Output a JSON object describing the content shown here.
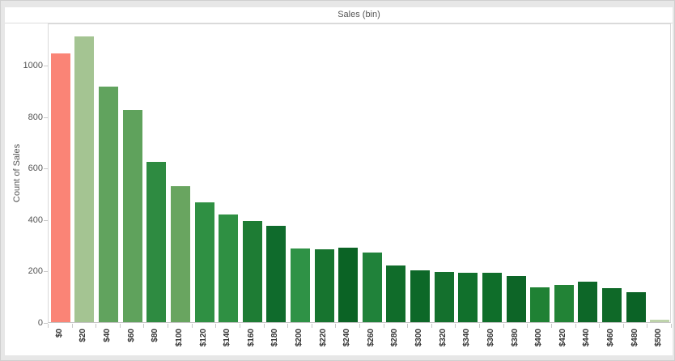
{
  "window": {
    "background_color": "#e7e7e7",
    "panel_color": "#ffffff"
  },
  "header": {
    "title": "Sales (bin)"
  },
  "y_axis": {
    "label": "Count of Sales",
    "ticks": [
      0,
      200,
      400,
      600,
      800,
      1000
    ],
    "max": 1165
  },
  "chart_data": {
    "type": "bar",
    "title": "Sales (bin)",
    "xlabel": "Sales (bin)",
    "ylabel": "Count of Sales",
    "ylim": [
      0,
      1165
    ],
    "grid": false,
    "legend": "none",
    "categories": [
      "$0",
      "$20",
      "$40",
      "$60",
      "$80",
      "$100",
      "$120",
      "$140",
      "$160",
      "$180",
      "$200",
      "$220",
      "$240",
      "$260",
      "$280",
      "$300",
      "$320",
      "$340",
      "$360",
      "$380",
      "$400",
      "$420",
      "$440",
      "$460",
      "$480",
      "$500"
    ],
    "values": [
      1045,
      1110,
      915,
      825,
      625,
      530,
      465,
      420,
      395,
      375,
      288,
      283,
      290,
      270,
      221,
      203,
      196,
      192,
      193,
      180,
      137,
      145,
      156,
      133,
      116,
      8
    ],
    "bar_colors": [
      "#fa8476",
      "#a4c492",
      "#61a35e",
      "#5fa25c",
      "#2e8b41",
      "#69a560",
      "#2f9043",
      "#2f9043",
      "#1e7c34",
      "#0f6b2c",
      "#2f9246",
      "#17742f",
      "#0b6325",
      "#20823a",
      "#106c2a",
      "#0d6828",
      "#14702d",
      "#11702c",
      "#0f6e2a",
      "#0d6527",
      "#1f8134",
      "#228336",
      "#0d6728",
      "#0f6928",
      "#0b6326",
      "#bed3ab"
    ]
  }
}
